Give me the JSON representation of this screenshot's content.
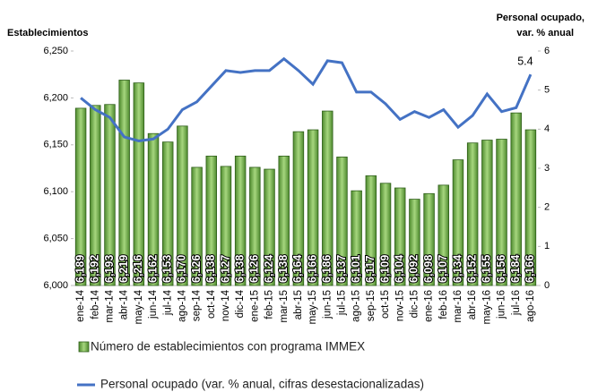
{
  "chart_data": {
    "type": "bar-line",
    "y_title": "Establecimientos",
    "y2_title": [
      "Personal ocupado,",
      "var. % anual"
    ],
    "categories": [
      "ene-14",
      "feb-14",
      "mar-14",
      "abr-14",
      "may-14",
      "jun-14",
      "jul-14",
      "ago-14",
      "sep-14",
      "oct-14",
      "nov-14",
      "dic-14",
      "ene-15",
      "feb-15",
      "mar-15",
      "abr-15",
      "may-15",
      "jun-15",
      "jul-15",
      "ago-15",
      "sep-15",
      "oct-15",
      "nov-15",
      "dic-15",
      "ene-16",
      "feb-16",
      "mar-16",
      "abr-16",
      "may-16",
      "jun-16",
      "jul-16",
      "ago-16"
    ],
    "series": [
      {
        "name": "Número de establecimientos con programa IMMEX",
        "type": "bar",
        "color": "#70ad47",
        "values": [
          6189,
          6192,
          6193,
          6219,
          6216,
          6162,
          6153,
          6170,
          6126,
          6138,
          6127,
          6138,
          6126,
          6124,
          6138,
          6164,
          6166,
          6186,
          6137,
          6101,
          6117,
          6109,
          6104,
          6092,
          6098,
          6107,
          6134,
          6152,
          6155,
          6156,
          6184,
          6166
        ],
        "value_labels": [
          "6,189",
          "6,192",
          "6,193",
          "6,219",
          "6,216",
          "6,162",
          "6,153",
          "6,170",
          "6,126",
          "6,138",
          "6,127",
          "6,138",
          "6,126",
          "6,124",
          "6,138",
          "6,164",
          "6,166",
          "6,186",
          "6,137",
          "6,101",
          "6,117",
          "6,109",
          "6,104",
          "6,092",
          "6,098",
          "6,107",
          "6,134",
          "6,152",
          "6,155",
          "6,156",
          "6,184",
          "6,166"
        ]
      },
      {
        "name": "Personal ocupado (var. % anual, cifras desestacionalizadas)",
        "type": "line",
        "axis": "y2",
        "color": "#4472c4",
        "values": [
          4.8,
          4.5,
          4.3,
          3.8,
          3.7,
          3.75,
          4.0,
          4.5,
          4.7,
          5.1,
          5.5,
          5.45,
          5.5,
          5.5,
          5.8,
          5.5,
          5.15,
          5.75,
          5.7,
          4.95,
          4.95,
          4.65,
          4.25,
          4.45,
          4.3,
          4.5,
          4.05,
          4.35,
          4.9,
          4.45,
          4.55,
          5.4
        ],
        "value_labels": [
          null,
          null,
          null,
          null,
          null,
          null,
          null,
          null,
          null,
          null,
          null,
          null,
          null,
          null,
          null,
          null,
          null,
          null,
          null,
          null,
          null,
          null,
          null,
          null,
          null,
          null,
          null,
          null,
          null,
          null,
          null,
          "5.4"
        ]
      }
    ],
    "ylim": [
      6000,
      6250
    ],
    "yticks": [
      {
        "value": 6000,
        "label": "6,000"
      },
      {
        "value": 6050,
        "label": "6,050"
      },
      {
        "value": 6100,
        "label": "6,100"
      },
      {
        "value": 6150,
        "label": "6,150"
      },
      {
        "value": 6200,
        "label": "6,200"
      },
      {
        "value": 6250,
        "label": "6,250"
      }
    ],
    "y2lim": [
      0,
      6
    ],
    "y2ticks": [
      0,
      1,
      2,
      3,
      4,
      5,
      6
    ]
  }
}
